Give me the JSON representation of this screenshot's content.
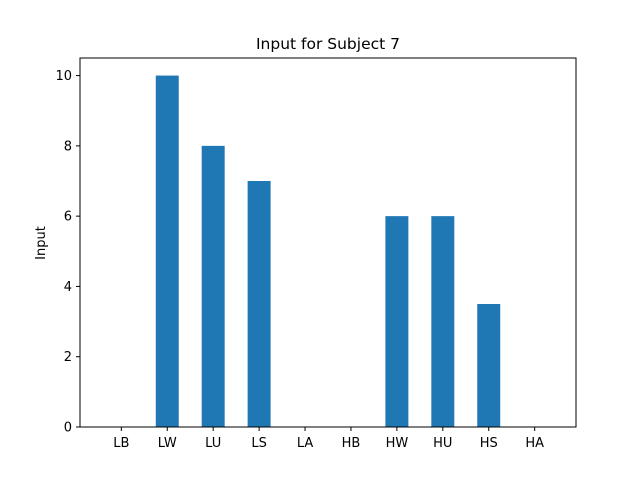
{
  "chart_data": {
    "type": "bar",
    "title": "Input for Subject 7",
    "xlabel": "",
    "ylabel": "Input",
    "categories": [
      "LB",
      "LW",
      "LU",
      "LS",
      "LA",
      "HB",
      "HW",
      "HU",
      "HS",
      "HA"
    ],
    "values": [
      0,
      10,
      8,
      7,
      0,
      0,
      6,
      6,
      3.5,
      0
    ],
    "ylim": [
      0,
      10.5
    ],
    "yticks": [
      0,
      2,
      4,
      6,
      8,
      10
    ],
    "bar_color": "#1f77b4",
    "grid": false,
    "legend": null
  }
}
